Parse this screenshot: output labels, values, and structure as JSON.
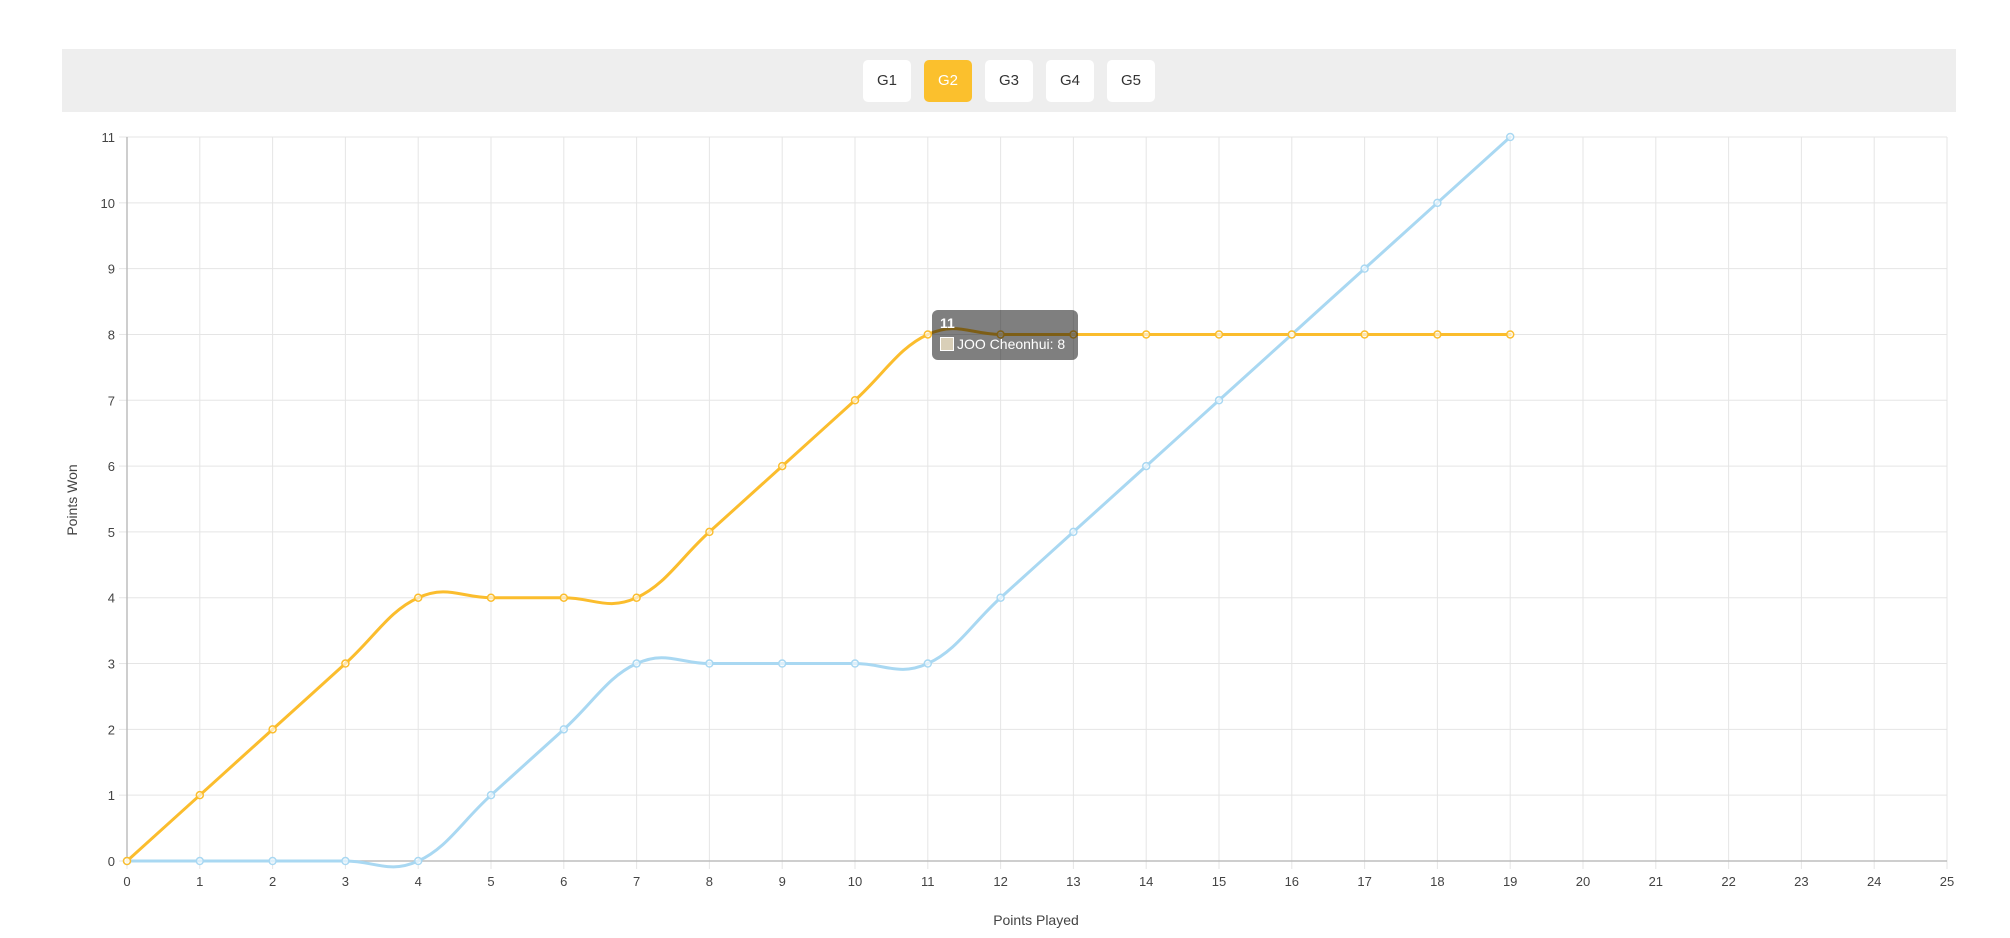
{
  "tabs": [
    {
      "label": "G1",
      "active": false
    },
    {
      "label": "G2",
      "active": true
    },
    {
      "label": "G3",
      "active": false
    },
    {
      "label": "G4",
      "active": false
    },
    {
      "label": "G5",
      "active": false
    }
  ],
  "colors": {
    "accent": "#fbc02d",
    "series_1": "#fbbd2d",
    "series_2": "#a9d8f2",
    "tab_bar_bg": "#eeeeee",
    "grid": "#e5e5e5"
  },
  "tooltip": {
    "title": "11",
    "label": "JOO Cheonhui: 8"
  },
  "chart_data": {
    "type": "line",
    "xlabel": "Points Played",
    "ylabel": "Points Won",
    "xlim": [
      0,
      25
    ],
    "ylim": [
      0,
      11
    ],
    "x_ticks": [
      0,
      1,
      2,
      3,
      4,
      5,
      6,
      7,
      8,
      9,
      10,
      11,
      12,
      13,
      14,
      15,
      16,
      17,
      18,
      19,
      20,
      21,
      22,
      23,
      24,
      25
    ],
    "y_ticks": [
      0,
      1,
      2,
      3,
      4,
      5,
      6,
      7,
      8,
      9,
      10,
      11
    ],
    "grid": true,
    "x": [
      0,
      1,
      2,
      3,
      4,
      5,
      6,
      7,
      8,
      9,
      10,
      11,
      12,
      13,
      14,
      15,
      16,
      17,
      18,
      19
    ],
    "series": [
      {
        "name": "JOO Cheonhui",
        "color": "#fbbd2d",
        "values": [
          0,
          1,
          2,
          3,
          4,
          4,
          4,
          4,
          5,
          6,
          7,
          8,
          8,
          8,
          8,
          8,
          8,
          8,
          8,
          8
        ]
      },
      {
        "color": "#a9d8f2",
        "values": [
          0,
          0,
          0,
          0,
          0,
          1,
          2,
          3,
          3,
          3,
          3,
          3,
          4,
          5,
          6,
          7,
          8,
          9,
          10,
          11
        ]
      }
    ]
  }
}
